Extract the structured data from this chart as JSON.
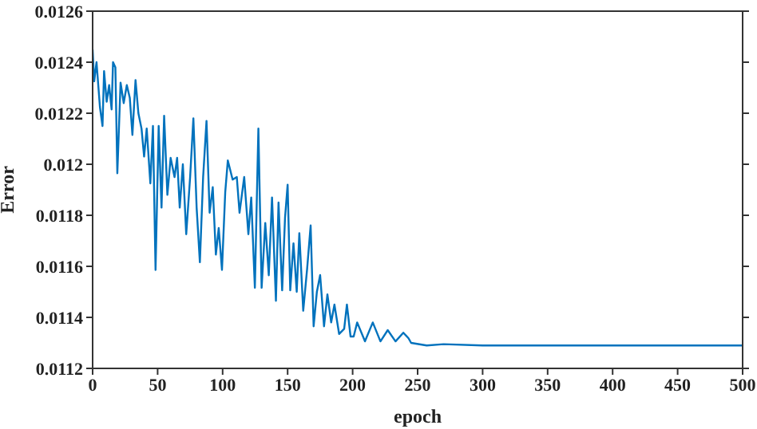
{
  "chart_data": {
    "type": "line",
    "xlabel": "epoch",
    "ylabel": "Error",
    "xlim": [
      0,
      500
    ],
    "xticks": [
      0,
      50,
      100,
      150,
      200,
      250,
      300,
      350,
      400,
      450,
      500
    ],
    "ylim": [
      0.0112,
      0.0126
    ],
    "yticks": [
      0.0112,
      0.0114,
      0.0116,
      0.0118,
      0.012,
      0.0122,
      0.0124,
      0.0126
    ],
    "marker": "none",
    "line_style": "solid",
    "series": [
      {
        "color": "#0072bd",
        "x": [
          0,
          1.2,
          3,
          5.6,
          7.6,
          8.8,
          10.8,
          12.7,
          14.6,
          15.7,
          17.5,
          19,
          21.5,
          23.9,
          26.3,
          28.6,
          30.6,
          33,
          35.2,
          37.6,
          39.6,
          41.6,
          44.4,
          46.4,
          48.4,
          50.8,
          53,
          55,
          57.5,
          60,
          63,
          65,
          67,
          69.4,
          72,
          75,
          77.5,
          80,
          82.5,
          85,
          87.6,
          90,
          92.4,
          94.8,
          97,
          99.5,
          102,
          104,
          107.7,
          110.9,
          113,
          116.6,
          119.8,
          122,
          124.8,
          127.5,
          130,
          132.8,
          135.5,
          138,
          141,
          143,
          145.8,
          148,
          150,
          152,
          154.5,
          157,
          159,
          162,
          165,
          167.7,
          170,
          172.5,
          175,
          178,
          180.6,
          183.5,
          186,
          189.6,
          193.5,
          195.6,
          198.4,
          200.8,
          203.5,
          209.5,
          215.5,
          221.4,
          227,
          233,
          239,
          243,
          245,
          257,
          270,
          300,
          400,
          500
        ],
        "values": [
          0.01245,
          0.012325,
          0.0124,
          0.012225,
          0.01215,
          0.012365,
          0.012245,
          0.01231,
          0.012215,
          0.0124,
          0.01238,
          0.011965,
          0.01232,
          0.01224,
          0.01231,
          0.01226,
          0.012115,
          0.01233,
          0.0122,
          0.01214,
          0.01203,
          0.01214,
          0.011925,
          0.01215,
          0.011586,
          0.01215,
          0.01183,
          0.01219,
          0.01188,
          0.012025,
          0.01195,
          0.012025,
          0.01183,
          0.012,
          0.011726,
          0.01195,
          0.01218,
          0.01183,
          0.011616,
          0.01195,
          0.01217,
          0.01181,
          0.01191,
          0.011646,
          0.01175,
          0.011586,
          0.01189,
          0.012015,
          0.01194,
          0.01195,
          0.01181,
          0.01195,
          0.011726,
          0.01187,
          0.011516,
          0.01214,
          0.011516,
          0.01177,
          0.011565,
          0.01187,
          0.011465,
          0.01185,
          0.011506,
          0.01179,
          0.01192,
          0.011506,
          0.01169,
          0.0115,
          0.01173,
          0.011426,
          0.01159,
          0.01176,
          0.011365,
          0.0115,
          0.011566,
          0.011365,
          0.01149,
          0.01138,
          0.01145,
          0.011335,
          0.011355,
          0.01145,
          0.011325,
          0.011325,
          0.01138,
          0.011306,
          0.01138,
          0.011306,
          0.01135,
          0.011306,
          0.01134,
          0.011318,
          0.0113,
          0.01129,
          0.011295,
          0.01129,
          0.01129,
          0.01129
        ]
      }
    ]
  }
}
